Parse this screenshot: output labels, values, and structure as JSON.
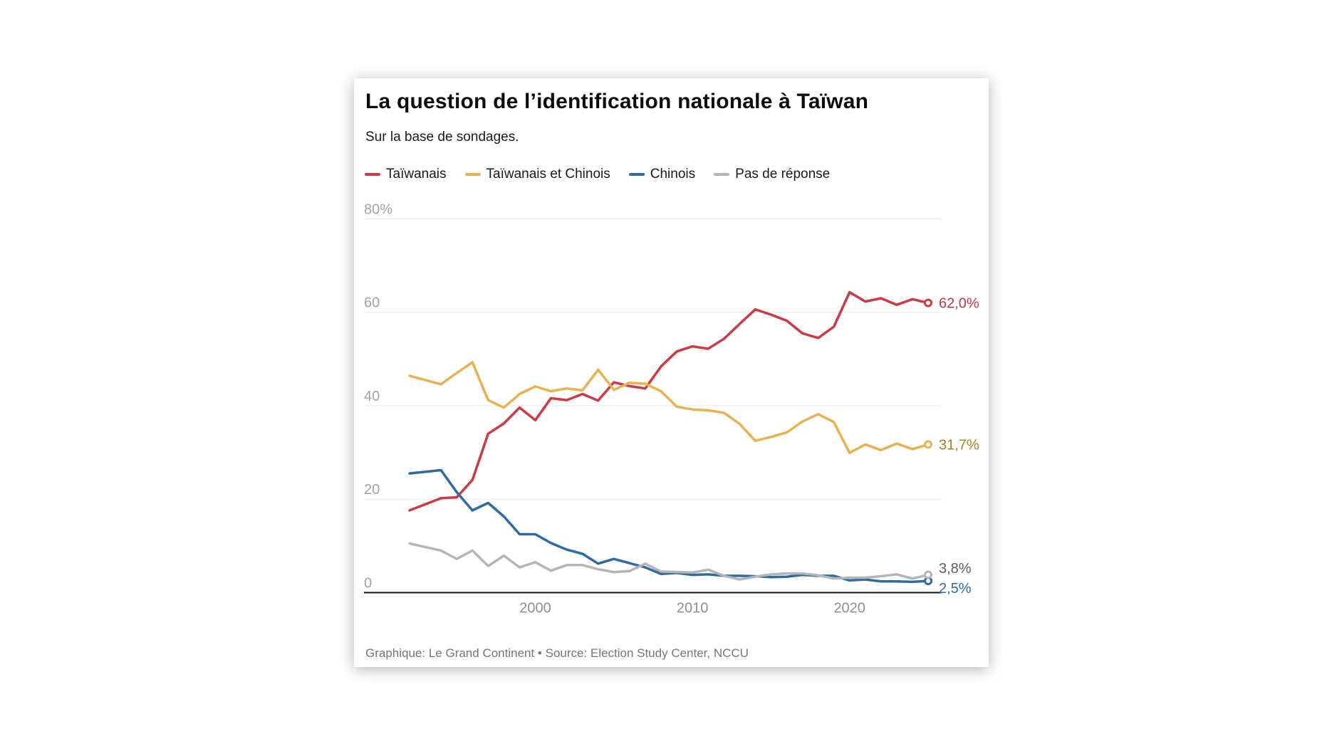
{
  "page": {
    "background": "#ffffff"
  },
  "card": {
    "title": "La question de l’identification nationale à Taïwan",
    "subtitle": "Sur la base de sondages.",
    "footer": "Graphique: Le Grand Continent • Source: Election Study Center, NCCU"
  },
  "chart_data": {
    "type": "line",
    "title": "La question de l’identification nationale à Taïwan",
    "subtitle": "Sur la base de sondages.",
    "legend_position": "top",
    "grid": "horizontal-only",
    "xlim": [
      1992,
      2025
    ],
    "ylim": [
      0,
      80
    ],
    "xticks": [
      {
        "v": 2000,
        "label": "2000"
      },
      {
        "v": 2010,
        "label": "2010"
      },
      {
        "v": 2020,
        "label": "2020"
      }
    ],
    "yticks": [
      {
        "v": 0,
        "label": "0"
      },
      {
        "v": 20,
        "label": "20"
      },
      {
        "v": 40,
        "label": "40"
      },
      {
        "v": 60,
        "label": "60"
      },
      {
        "v": 80,
        "label": "80%"
      }
    ],
    "x": [
      1992,
      1994,
      1995,
      1996,
      1997,
      1998,
      1999,
      2000,
      2001,
      2002,
      2003,
      2004,
      2005,
      2006,
      2007,
      2008,
      2009,
      2010,
      2011,
      2012,
      2013,
      2014,
      2015,
      2016,
      2017,
      2018,
      2019,
      2020,
      2021,
      2022,
      2023,
      2024,
      2025
    ],
    "series": [
      {
        "name": "Taïwanais",
        "color": "#cd3a45",
        "label_color": "#c43641",
        "end_label": "62,0%",
        "values": [
          17.6,
          20.2,
          20.4,
          24.1,
          34.0,
          36.2,
          39.6,
          36.9,
          41.6,
          41.2,
          42.5,
          41.1,
          45.0,
          44.2,
          43.7,
          48.4,
          51.6,
          52.7,
          52.2,
          54.3,
          57.5,
          60.6,
          59.5,
          58.2,
          55.5,
          54.5,
          56.9,
          64.3,
          62.3,
          63.0,
          61.6,
          62.8,
          62.0
        ]
      },
      {
        "name": "Taïwanais et Chinois",
        "color": "#e9b24e",
        "label_color": "#a5811f",
        "end_label": "31,7%",
        "values": [
          46.4,
          44.6,
          47.0,
          49.3,
          41.2,
          39.6,
          42.5,
          44.1,
          43.1,
          43.7,
          43.3,
          47.7,
          43.4,
          44.9,
          44.7,
          43.1,
          39.8,
          39.2,
          39.0,
          38.5,
          36.1,
          32.5,
          33.3,
          34.3,
          36.6,
          38.2,
          36.5,
          29.9,
          31.7,
          30.5,
          31.9,
          30.7,
          31.7
        ]
      },
      {
        "name": "Chinois",
        "color": "#2f6ba3",
        "label_color": "#2f6ba3",
        "end_label": "2,5%",
        "values": [
          25.5,
          26.2,
          21.5,
          17.6,
          19.2,
          16.3,
          12.5,
          12.5,
          10.6,
          9.2,
          8.3,
          6.2,
          7.2,
          6.3,
          5.4,
          4.0,
          4.2,
          3.8,
          3.9,
          3.6,
          3.6,
          3.5,
          3.3,
          3.4,
          3.8,
          3.6,
          3.6,
          2.6,
          2.8,
          2.4,
          2.4,
          2.3,
          2.5
        ]
      },
      {
        "name": "Pas de réponse",
        "color": "#b5b5b5",
        "label_color": "#5f5f5f",
        "end_label": "3,8%",
        "values": [
          10.5,
          9.0,
          7.2,
          9.0,
          5.7,
          7.9,
          5.4,
          6.5,
          4.7,
          5.9,
          5.9,
          5.0,
          4.4,
          4.6,
          6.2,
          4.5,
          4.4,
          4.3,
          4.9,
          3.6,
          2.8,
          3.4,
          3.9,
          4.1,
          4.1,
          3.7,
          3.0,
          3.2,
          3.2,
          3.5,
          3.9,
          3.0,
          3.8
        ]
      }
    ],
    "axis_colors": {
      "gridline": "#e7e7e7",
      "axis_line": "#111111",
      "ytick_label": "#a3a3a3",
      "xtick_label": "#8f8f8f"
    }
  }
}
